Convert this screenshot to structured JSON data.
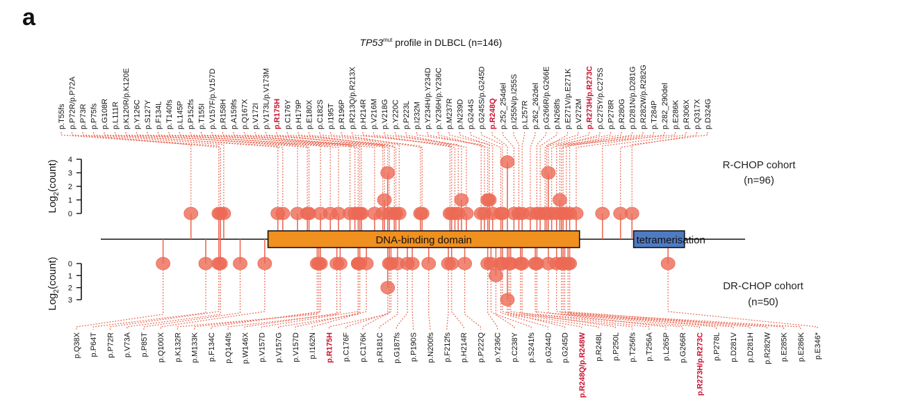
{
  "panel_letter": "a",
  "chart_data": {
    "type": "lollipop",
    "title_gene": "TP53",
    "title_sup": "mut",
    "title_rest": " profile in DLBCL (n=146)",
    "protein_length": 393,
    "domains": [
      {
        "name": "DNA-binding domain",
        "start": 102,
        "end": 292,
        "color": "#f0901e"
      },
      {
        "name": "tetramerisation",
        "start": 325,
        "end": 356,
        "color": "#4f7bc4"
      }
    ],
    "lollipop_color": "#ec6a55",
    "highlight_color": "#c8102e",
    "ylabel": "Log2(count)",
    "top": {
      "cohort": "R-CHOP cohort",
      "n_label": "(n=96)",
      "yticks": [
        "0",
        "1",
        "2",
        "3",
        "4"
      ],
      "ylim": [
        0,
        4
      ],
      "mutations": [
        {
          "label": "p.T55fs",
          "pos": 55,
          "log2": 0
        },
        {
          "label": "p.P72R/p.P72A",
          "pos": 72,
          "log2": 0
        },
        {
          "label": "p.P73R",
          "pos": 73,
          "log2": 0
        },
        {
          "label": "p.P75fs",
          "pos": 75,
          "log2": 0
        },
        {
          "label": "p.G108R",
          "pos": 108,
          "log2": 0
        },
        {
          "label": "p.L111R",
          "pos": 111,
          "log2": 0
        },
        {
          "label": "p.K120R/p.K120E",
          "pos": 120,
          "log2": 0
        },
        {
          "label": "p.Y126C",
          "pos": 126,
          "log2": 0
        },
        {
          "label": "p.S127Y",
          "pos": 127,
          "log2": 0
        },
        {
          "label": "p.F134L",
          "pos": 134,
          "log2": 0
        },
        {
          "label": "p.T140fs",
          "pos": 140,
          "log2": 0
        },
        {
          "label": "p.L145P",
          "pos": 145,
          "log2": 0
        },
        {
          "label": "p.P152fs",
          "pos": 152,
          "log2": 0
        },
        {
          "label": "p.T155I",
          "pos": 155,
          "log2": 0
        },
        {
          "label": "p.V157F/p.V157D",
          "pos": 157,
          "log2": 0
        },
        {
          "label": "p.R158H",
          "pos": 158,
          "log2": 0
        },
        {
          "label": "p.A159fs",
          "pos": 159,
          "log2": 0
        },
        {
          "label": "p.Q167X",
          "pos": 167,
          "log2": 0
        },
        {
          "label": "p.V172I",
          "pos": 172,
          "log2": 0
        },
        {
          "label": "p.V173L/p.V173M",
          "pos": 173,
          "log2": 1
        },
        {
          "label": "p.R175H",
          "pos": 175,
          "log2": 3,
          "highlight": true
        },
        {
          "label": "p.C176Y",
          "pos": 176,
          "log2": 0
        },
        {
          "label": "p.H179P",
          "pos": 179,
          "log2": 0
        },
        {
          "label": "p.E180X",
          "pos": 180,
          "log2": 0
        },
        {
          "label": "p.C182S",
          "pos": 182,
          "log2": 0
        },
        {
          "label": "p.I195T",
          "pos": 195,
          "log2": 0
        },
        {
          "label": "p.R196P",
          "pos": 196,
          "log2": 0
        },
        {
          "label": "p.R213Q/p.R213X",
          "pos": 213,
          "log2": 0
        },
        {
          "label": "p.H214R",
          "pos": 214,
          "log2": 0
        },
        {
          "label": "p.V216M",
          "pos": 216,
          "log2": 0
        },
        {
          "label": "p.V218G",
          "pos": 218,
          "log2": 0
        },
        {
          "label": "p.Y220C",
          "pos": 220,
          "log2": 1
        },
        {
          "label": "p.P223L",
          "pos": 223,
          "log2": 0
        },
        {
          "label": "p.I232M",
          "pos": 232,
          "log2": 0
        },
        {
          "label": "p.Y234H/p.Y234D",
          "pos": 234,
          "log2": 0
        },
        {
          "label": "p.Y236H/p.Y236C",
          "pos": 236,
          "log2": 1
        },
        {
          "label": "p.M237R",
          "pos": 237,
          "log2": 1
        },
        {
          "label": "p.N239D",
          "pos": 239,
          "log2": 0
        },
        {
          "label": "p.G244S",
          "pos": 244,
          "log2": 0
        },
        {
          "label": "p.G245S/p.G245D",
          "pos": 245,
          "log2": 0
        },
        {
          "label": "p.R248Q",
          "pos": 248,
          "log2": 3.8,
          "highlight": true
        },
        {
          "label": "p.252_254del",
          "pos": 252,
          "log2": 0
        },
        {
          "label": "p.I255N/p.I255S",
          "pos": 255,
          "log2": 0
        },
        {
          "label": "p.L257R",
          "pos": 257,
          "log2": 0
        },
        {
          "label": "p.262_262del",
          "pos": 262,
          "log2": 0
        },
        {
          "label": "p.G266R/p.G266E",
          "pos": 266,
          "log2": 0
        },
        {
          "label": "p.N268fs",
          "pos": 268,
          "log2": 0
        },
        {
          "label": "p.E271V/p.E271K",
          "pos": 271,
          "log2": 0
        },
        {
          "label": "p.V272M",
          "pos": 272,
          "log2": 0
        },
        {
          "label": "p.R273H/p.R273C",
          "pos": 273,
          "log2": 3,
          "highlight": true
        },
        {
          "label": "p.C275Y/p.C275S",
          "pos": 275,
          "log2": 0
        },
        {
          "label": "p.P278R",
          "pos": 278,
          "log2": 0
        },
        {
          "label": "p.R280G",
          "pos": 280,
          "log2": 1
        },
        {
          "label": "p.D281N/p.D281G",
          "pos": 281,
          "log2": 0
        },
        {
          "label": "p.R282W/p.R282G",
          "pos": 282,
          "log2": 0
        },
        {
          "label": "p.T284P",
          "pos": 284,
          "log2": 0
        },
        {
          "label": "p.282_290del",
          "pos": 290,
          "log2": 0
        },
        {
          "label": "p.E286K",
          "pos": 286,
          "log2": 0
        },
        {
          "label": "p.R306X",
          "pos": 306,
          "log2": 0
        },
        {
          "label": "p.Q317X",
          "pos": 317,
          "log2": 0
        },
        {
          "label": "p.D324G",
          "pos": 324,
          "log2": 0
        }
      ]
    },
    "bottom": {
      "cohort": "DR-CHOP cohort",
      "n_label": "(n=50)",
      "yticks": [
        "0",
        "1",
        "2",
        "3"
      ],
      "ylim": [
        0,
        3
      ],
      "mutations": [
        {
          "label": "p.Q38X",
          "pos": 38,
          "log2": 0
        },
        {
          "label": "p.P64T",
          "pos": 64,
          "log2": 0
        },
        {
          "label": "p.P72R",
          "pos": 72,
          "log2": 0
        },
        {
          "label": "p.V73A",
          "pos": 73,
          "log2": 0
        },
        {
          "label": "p.P85T",
          "pos": 85,
          "log2": 0
        },
        {
          "label": "p.Q100X",
          "pos": 100,
          "log2": 0
        },
        {
          "label": "p.K132R",
          "pos": 132,
          "log2": 0
        },
        {
          "label": "p.M133K",
          "pos": 133,
          "log2": 0
        },
        {
          "label": "p.F134C",
          "pos": 134,
          "log2": 0
        },
        {
          "label": "p.Q144fs",
          "pos": 144,
          "log2": 0
        },
        {
          "label": "p.W146X",
          "pos": 146,
          "log2": 0
        },
        {
          "label": "p.V157D",
          "pos": 157,
          "log2": 0
        },
        {
          "label": "p.V157G",
          "pos": 157,
          "log2": 0
        },
        {
          "label": "p.V157D",
          "pos": 158,
          "log2": 0
        },
        {
          "label": "p.I162N",
          "pos": 162,
          "log2": 0
        },
        {
          "label": "p.R175H",
          "pos": 175,
          "log2": 2,
          "highlight": true
        },
        {
          "label": "p.C176F",
          "pos": 176,
          "log2": 0
        },
        {
          "label": "p.C176K",
          "pos": 177,
          "log2": 0
        },
        {
          "label": "p.R181C",
          "pos": 181,
          "log2": 0
        },
        {
          "label": "p.G187fs",
          "pos": 187,
          "log2": 0
        },
        {
          "label": "p.P190S",
          "pos": 190,
          "log2": 0
        },
        {
          "label": "p.N200fs",
          "pos": 200,
          "log2": 0
        },
        {
          "label": "p.F212fs",
          "pos": 212,
          "log2": 0
        },
        {
          "label": "p.H214R",
          "pos": 214,
          "log2": 0
        },
        {
          "label": "p.P222Q",
          "pos": 222,
          "log2": 0
        },
        {
          "label": "p.Y236C",
          "pos": 236,
          "log2": 0
        },
        {
          "label": "p.C238Y",
          "pos": 238,
          "log2": 0
        },
        {
          "label": "p.S241fs",
          "pos": 241,
          "log2": 1
        },
        {
          "label": "p.G244D",
          "pos": 244,
          "log2": 0
        },
        {
          "label": "p.G245D",
          "pos": 245,
          "log2": 0
        },
        {
          "label": "p.R248Q/p.R248W",
          "pos": 248,
          "log2": 3,
          "highlight": true
        },
        {
          "label": "p.R248L",
          "pos": 249,
          "log2": 0
        },
        {
          "label": "p.P250L",
          "pos": 250,
          "log2": 0
        },
        {
          "label": "p.T256fs",
          "pos": 256,
          "log2": 0
        },
        {
          "label": "p.T256A",
          "pos": 257,
          "log2": 0
        },
        {
          "label": "p.L265P",
          "pos": 265,
          "log2": 0
        },
        {
          "label": "p.G266R",
          "pos": 266,
          "log2": 0
        },
        {
          "label": "p.R273H/p.R273C",
          "pos": 273,
          "log2": 0,
          "highlight": true
        },
        {
          "label": "p.P278L",
          "pos": 278,
          "log2": 0
        },
        {
          "label": "p.D281V",
          "pos": 281,
          "log2": 0
        },
        {
          "label": "p.D281H",
          "pos": 282,
          "log2": 0
        },
        {
          "label": "p.R282W",
          "pos": 283,
          "log2": 0
        },
        {
          "label": "p.E285K",
          "pos": 285,
          "log2": 0
        },
        {
          "label": "p.E286K",
          "pos": 286,
          "log2": 0
        },
        {
          "label": "p.E346*",
          "pos": 346,
          "log2": 0
        }
      ]
    }
  }
}
